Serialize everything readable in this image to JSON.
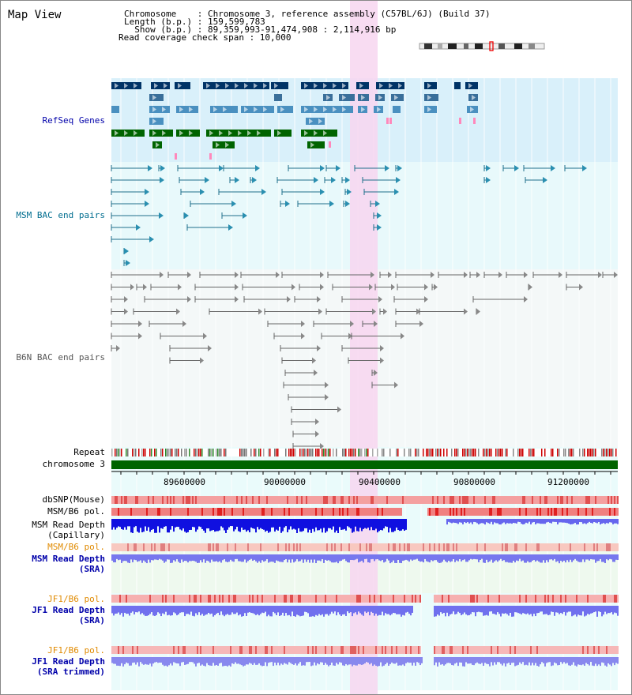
{
  "title": "Map View",
  "header": {
    "chromosome": "Chromosome    : Chromosome 3, reference assembly (C57BL/6J) (Build 37)",
    "length": "Length (b.p.) : 159,599,783",
    "show": "  Show (b.p.) : 89,359,993-91,474,908 : 2,114,916 bp",
    "coverage": "Read coverage check span : 10,000"
  },
  "tracks": {
    "refseq": "RefSeq Genes",
    "msm_bac": "MSM BAC end pairs",
    "b6n_bac": "B6N BAC end pairs",
    "repeat": "Repeat",
    "chromosome": "chromosome 3"
  },
  "axis": {
    "ticks": [
      "89600000",
      "90000000",
      "90400000",
      "90800000",
      "91200000"
    ]
  },
  "lower_tracks": {
    "dbsnp": "dbSNP(Mouse)",
    "msm_b6_pol_1": "MSM/B6 pol.",
    "msm_read_depth_cap_1": "MSM Read Depth",
    "msm_read_depth_cap_2": "(Capillary)",
    "msm_b6_pol_2": "MSM/B6 pol.",
    "msm_read_depth_sra_1": "MSM Read Depth",
    "msm_read_depth_sra_2": "(SRA)",
    "jf1_b6_pol_1": "JF1/B6 pol.",
    "jf1_read_depth_sra_1": "JF1 Read Depth",
    "jf1_read_depth_sra_2": "(SRA)",
    "jf1_b6_pol_2": "JF1/B6 pol.",
    "jf1_read_depth_trim_1": "JF1 Read Depth",
    "jf1_read_depth_trim_2": "(SRA trimmed)"
  },
  "colors": {
    "refseq_bg": "#d9f0fa",
    "bac_bg": "#e6f8fb",
    "highlight": "#f7d6f0",
    "label_blue": "#0000aa",
    "label_teal": "#006d8f",
    "label_orange": "#e08a00"
  }
}
